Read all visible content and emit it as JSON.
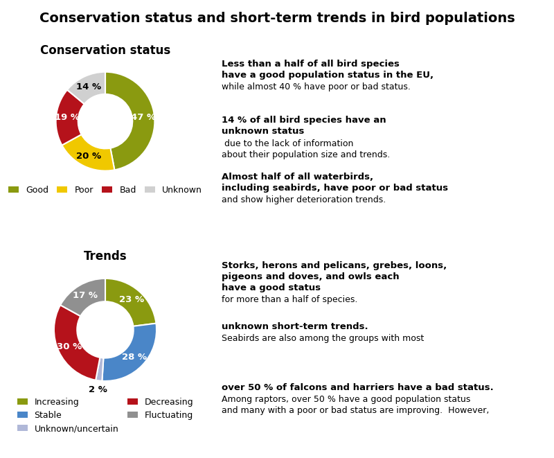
{
  "title": "Conservation status and short-term trends in bird populations",
  "chart_data": [
    {
      "type": "pie",
      "title": "Conservation status",
      "categories": [
        "Good",
        "Poor",
        "Bad",
        "Unknown"
      ],
      "values": [
        47,
        20,
        19,
        14
      ],
      "value_labels": [
        "47 %",
        "20 %",
        "19 %",
        "14 %"
      ],
      "colors": [
        "#8a9a10",
        "#f0c800",
        "#b5121b",
        "#d0d0d0"
      ],
      "data_labels": true,
      "legend": "lower center",
      "annotations": [
        [
          "Less than a half of all bird species\nhave a good population status in the EU,",
          "while almost 40 % have poor or bad status."
        ],
        [
          "14 % of all bird species have an\nunknown status",
          " due to the lack of information\nabout their population size and trends."
        ],
        [
          "Almost half of all waterbirds,\nincluding seabirds, have poor or bad status",
          "and show higher deterioration trends."
        ]
      ]
    },
    {
      "type": "pie",
      "title": "Trends",
      "categories": [
        "Increasing",
        "Stable",
        "Unknown/uncertain",
        "Decreasing",
        "Fluctuating"
      ],
      "values": [
        23,
        28,
        2,
        30,
        17
      ],
      "value_labels": [
        "23 %",
        "28 %",
        "2 %",
        "30 %",
        "17 %"
      ],
      "colors": [
        "#8a9a10",
        "#4a86c8",
        "#b0b8d8",
        "#b5121b",
        "#909090"
      ],
      "data_labels": true,
      "legend": "lower center",
      "annotations": [
        [
          "Storks, herons and pelicans, grebes, loons,\npigeons and doves, and owls each\nhave a good status",
          "for more than a half of species."
        ],
        [
          "unknown short-term trends.",
          "Seabirds are also among the groups with most"
        ],
        [
          "over 50 % of falcons and harriers have a bad status.",
          "Among raptors, over 50 % have a good population status\nand many with a poor or bad status are improving.  However,"
        ]
      ]
    }
  ]
}
